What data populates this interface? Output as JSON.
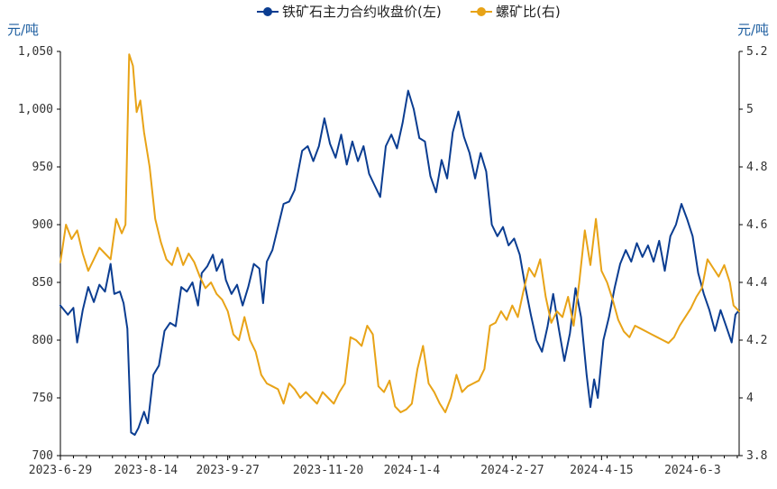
{
  "chart_data": {
    "type": "line",
    "colors": {
      "iron_ore": "#0b3d91",
      "ratio": "#e8a317",
      "axis": "#000000"
    },
    "legend": {
      "placement": "top-center",
      "items": [
        {
          "label": "铁矿石主力合约收盘价(左)",
          "color": "#0b3d91"
        },
        {
          "label": "螺矿比(右)",
          "color": "#e8a317"
        }
      ]
    },
    "y_left": {
      "unit": "元/吨",
      "range": [
        700,
        1050
      ],
      "ticks": [
        "700",
        "750",
        "800",
        "850",
        "900",
        "950",
        "1,000",
        "1,050"
      ],
      "tick_values": [
        700,
        750,
        800,
        850,
        900,
        950,
        1000,
        1050
      ]
    },
    "y_right": {
      "unit": "元/吨",
      "range": [
        3.8,
        5.2
      ],
      "ticks": [
        "3.8",
        "4",
        "4.2",
        "4.4",
        "4.6",
        "4.8",
        "5",
        "5.2"
      ],
      "tick_values": [
        3.8,
        4.0,
        4.2,
        4.4,
        4.6,
        4.8,
        5.0,
        5.2
      ]
    },
    "x_axis": {
      "range": [
        "2023-06-29",
        "2024-06-28"
      ],
      "ticks": [
        "2023-6-29",
        "2023-8-14",
        "2023-9-27",
        "2023-11-20",
        "2024-1-4",
        "2024-2-27",
        "2024-4-15",
        "2024-6-3"
      ],
      "tick_dates": [
        "2023-06-29",
        "2023-08-14",
        "2023-09-27",
        "2023-11-20",
        "2024-01-04",
        "2024-02-27",
        "2024-04-15",
        "2024-06-03"
      ]
    },
    "grid": false,
    "series": [
      {
        "name": "铁矿石主力合约收盘价(左)",
        "axis": "left",
        "color": "#0b3d91",
        "points": [
          [
            "2023-06-29",
            830
          ],
          [
            "2023-07-03",
            822
          ],
          [
            "2023-07-06",
            828
          ],
          [
            "2023-07-08",
            798
          ],
          [
            "2023-07-11",
            826
          ],
          [
            "2023-07-14",
            846
          ],
          [
            "2023-07-17",
            833
          ],
          [
            "2023-07-20",
            848
          ],
          [
            "2023-07-23",
            842
          ],
          [
            "2023-07-26",
            866
          ],
          [
            "2023-07-28",
            840
          ],
          [
            "2023-07-31",
            842
          ],
          [
            "2023-08-02",
            832
          ],
          [
            "2023-08-04",
            810
          ],
          [
            "2023-08-06",
            720
          ],
          [
            "2023-08-08",
            718
          ],
          [
            "2023-08-10",
            724
          ],
          [
            "2023-08-13",
            738
          ],
          [
            "2023-08-15",
            728
          ],
          [
            "2023-08-18",
            770
          ],
          [
            "2023-08-21",
            778
          ],
          [
            "2023-08-24",
            808
          ],
          [
            "2023-08-27",
            815
          ],
          [
            "2023-08-30",
            812
          ],
          [
            "2023-09-02",
            846
          ],
          [
            "2023-09-05",
            842
          ],
          [
            "2023-09-08",
            850
          ],
          [
            "2023-09-11",
            830
          ],
          [
            "2023-09-13",
            858
          ],
          [
            "2023-09-16",
            864
          ],
          [
            "2023-09-19",
            874
          ],
          [
            "2023-09-21",
            860
          ],
          [
            "2023-09-24",
            870
          ],
          [
            "2023-09-26",
            852
          ],
          [
            "2023-09-29",
            840
          ],
          [
            "2023-10-02",
            848
          ],
          [
            "2023-10-05",
            830
          ],
          [
            "2023-10-08",
            846
          ],
          [
            "2023-10-11",
            866
          ],
          [
            "2023-10-14",
            862
          ],
          [
            "2023-10-16",
            832
          ],
          [
            "2023-10-18",
            868
          ],
          [
            "2023-10-21",
            878
          ],
          [
            "2023-10-24",
            898
          ],
          [
            "2023-10-27",
            918
          ],
          [
            "2023-10-30",
            920
          ],
          [
            "2023-11-02",
            930
          ],
          [
            "2023-11-06",
            964
          ],
          [
            "2023-11-09",
            968
          ],
          [
            "2023-11-12",
            955
          ],
          [
            "2023-11-15",
            968
          ],
          [
            "2023-11-18",
            992
          ],
          [
            "2023-11-21",
            970
          ],
          [
            "2023-11-24",
            958
          ],
          [
            "2023-11-27",
            978
          ],
          [
            "2023-11-30",
            952
          ],
          [
            "2023-12-03",
            972
          ],
          [
            "2023-12-06",
            955
          ],
          [
            "2023-12-09",
            968
          ],
          [
            "2023-12-12",
            944
          ],
          [
            "2023-12-15",
            934
          ],
          [
            "2023-12-18",
            924
          ],
          [
            "2023-12-21",
            968
          ],
          [
            "2023-12-24",
            978
          ],
          [
            "2023-12-27",
            966
          ],
          [
            "2023-12-30",
            988
          ],
          [
            "2024-01-02",
            1016
          ],
          [
            "2024-01-05",
            1000
          ],
          [
            "2024-01-08",
            975
          ],
          [
            "2024-01-11",
            972
          ],
          [
            "2024-01-14",
            942
          ],
          [
            "2024-01-17",
            928
          ],
          [
            "2024-01-20",
            956
          ],
          [
            "2024-01-23",
            940
          ],
          [
            "2024-01-26",
            980
          ],
          [
            "2024-01-29",
            998
          ],
          [
            "2024-02-01",
            976
          ],
          [
            "2024-02-04",
            962
          ],
          [
            "2024-02-07",
            940
          ],
          [
            "2024-02-10",
            962
          ],
          [
            "2024-02-13",
            946
          ],
          [
            "2024-02-16",
            900
          ],
          [
            "2024-02-19",
            890
          ],
          [
            "2024-02-22",
            898
          ],
          [
            "2024-02-25",
            882
          ],
          [
            "2024-02-28",
            888
          ],
          [
            "2024-03-02",
            874
          ],
          [
            "2024-03-05",
            846
          ],
          [
            "2024-03-08",
            822
          ],
          [
            "2024-03-11",
            800
          ],
          [
            "2024-03-14",
            790
          ],
          [
            "2024-03-17",
            812
          ],
          [
            "2024-03-20",
            840
          ],
          [
            "2024-03-23",
            810
          ],
          [
            "2024-03-26",
            782
          ],
          [
            "2024-03-29",
            806
          ],
          [
            "2024-04-01",
            845
          ],
          [
            "2024-04-04",
            820
          ],
          [
            "2024-04-07",
            770
          ],
          [
            "2024-04-09",
            742
          ],
          [
            "2024-04-11",
            766
          ],
          [
            "2024-04-13",
            750
          ],
          [
            "2024-04-16",
            800
          ],
          [
            "2024-04-19",
            820
          ],
          [
            "2024-04-22",
            845
          ],
          [
            "2024-04-25",
            866
          ],
          [
            "2024-04-28",
            878
          ],
          [
            "2024-05-01",
            868
          ],
          [
            "2024-05-04",
            884
          ],
          [
            "2024-05-07",
            872
          ],
          [
            "2024-05-10",
            882
          ],
          [
            "2024-05-13",
            868
          ],
          [
            "2024-05-16",
            886
          ],
          [
            "2024-05-19",
            860
          ],
          [
            "2024-05-22",
            890
          ],
          [
            "2024-05-25",
            900
          ],
          [
            "2024-05-28",
            918
          ],
          [
            "2024-05-31",
            905
          ],
          [
            "2024-06-03",
            890
          ],
          [
            "2024-06-06",
            858
          ],
          [
            "2024-06-09",
            840
          ],
          [
            "2024-06-12",
            826
          ],
          [
            "2024-06-15",
            808
          ],
          [
            "2024-06-18",
            826
          ],
          [
            "2024-06-21",
            812
          ],
          [
            "2024-06-24",
            798
          ],
          [
            "2024-06-26",
            822
          ],
          [
            "2024-06-28",
            826
          ]
        ]
      },
      {
        "name": "螺矿比(右)",
        "axis": "right",
        "color": "#e8a317",
        "points": [
          [
            "2023-06-29",
            4.47
          ],
          [
            "2023-07-02",
            4.6
          ],
          [
            "2023-07-05",
            4.55
          ],
          [
            "2023-07-08",
            4.58
          ],
          [
            "2023-07-11",
            4.5
          ],
          [
            "2023-07-14",
            4.44
          ],
          [
            "2023-07-17",
            4.48
          ],
          [
            "2023-07-20",
            4.52
          ],
          [
            "2023-07-23",
            4.5
          ],
          [
            "2023-07-26",
            4.48
          ],
          [
            "2023-07-29",
            4.62
          ],
          [
            "2023-08-01",
            4.57
          ],
          [
            "2023-08-03",
            4.6
          ],
          [
            "2023-08-05",
            5.19
          ],
          [
            "2023-08-07",
            5.15
          ],
          [
            "2023-08-09",
            4.99
          ],
          [
            "2023-08-11",
            5.03
          ],
          [
            "2023-08-13",
            4.92
          ],
          [
            "2023-08-16",
            4.8
          ],
          [
            "2023-08-19",
            4.62
          ],
          [
            "2023-08-22",
            4.54
          ],
          [
            "2023-08-25",
            4.48
          ],
          [
            "2023-08-28",
            4.46
          ],
          [
            "2023-08-31",
            4.52
          ],
          [
            "2023-09-03",
            4.46
          ],
          [
            "2023-09-06",
            4.5
          ],
          [
            "2023-09-09",
            4.47
          ],
          [
            "2023-09-12",
            4.42
          ],
          [
            "2023-09-15",
            4.38
          ],
          [
            "2023-09-18",
            4.4
          ],
          [
            "2023-09-21",
            4.36
          ],
          [
            "2023-09-24",
            4.34
          ],
          [
            "2023-09-27",
            4.3
          ],
          [
            "2023-09-30",
            4.22
          ],
          [
            "2023-10-03",
            4.2
          ],
          [
            "2023-10-06",
            4.28
          ],
          [
            "2023-10-09",
            4.2
          ],
          [
            "2023-10-12",
            4.16
          ],
          [
            "2023-10-15",
            4.08
          ],
          [
            "2023-10-18",
            4.05
          ],
          [
            "2023-10-21",
            4.04
          ],
          [
            "2023-10-24",
            4.03
          ],
          [
            "2023-10-27",
            3.98
          ],
          [
            "2023-10-30",
            4.05
          ],
          [
            "2023-11-02",
            4.03
          ],
          [
            "2023-11-05",
            4.0
          ],
          [
            "2023-11-08",
            4.02
          ],
          [
            "2023-11-11",
            4.0
          ],
          [
            "2023-11-14",
            3.98
          ],
          [
            "2023-11-17",
            4.02
          ],
          [
            "2023-11-20",
            4.0
          ],
          [
            "2023-11-23",
            3.98
          ],
          [
            "2023-11-26",
            4.02
          ],
          [
            "2023-11-29",
            4.05
          ],
          [
            "2023-12-02",
            4.21
          ],
          [
            "2023-12-05",
            4.2
          ],
          [
            "2023-12-08",
            4.18
          ],
          [
            "2023-12-11",
            4.25
          ],
          [
            "2023-12-14",
            4.22
          ],
          [
            "2023-12-17",
            4.04
          ],
          [
            "2023-12-20",
            4.02
          ],
          [
            "2023-12-23",
            4.06
          ],
          [
            "2023-12-26",
            3.97
          ],
          [
            "2023-12-29",
            3.95
          ],
          [
            "2024-01-01",
            3.96
          ],
          [
            "2024-01-04",
            3.98
          ],
          [
            "2024-01-07",
            4.1
          ],
          [
            "2024-01-10",
            4.18
          ],
          [
            "2024-01-13",
            4.05
          ],
          [
            "2024-01-16",
            4.02
          ],
          [
            "2024-01-19",
            3.98
          ],
          [
            "2024-01-22",
            3.95
          ],
          [
            "2024-01-25",
            4.0
          ],
          [
            "2024-01-28",
            4.08
          ],
          [
            "2024-01-31",
            4.02
          ],
          [
            "2024-02-03",
            4.04
          ],
          [
            "2024-02-06",
            4.05
          ],
          [
            "2024-02-09",
            4.06
          ],
          [
            "2024-02-12",
            4.1
          ],
          [
            "2024-02-15",
            4.25
          ],
          [
            "2024-02-18",
            4.26
          ],
          [
            "2024-02-21",
            4.3
          ],
          [
            "2024-02-24",
            4.27
          ],
          [
            "2024-02-27",
            4.32
          ],
          [
            "2024-03-01",
            4.28
          ],
          [
            "2024-03-04",
            4.37
          ],
          [
            "2024-03-07",
            4.45
          ],
          [
            "2024-03-10",
            4.42
          ],
          [
            "2024-03-13",
            4.48
          ],
          [
            "2024-03-16",
            4.35
          ],
          [
            "2024-03-19",
            4.26
          ],
          [
            "2024-03-22",
            4.3
          ],
          [
            "2024-03-25",
            4.28
          ],
          [
            "2024-03-28",
            4.35
          ],
          [
            "2024-03-31",
            4.25
          ],
          [
            "2024-04-03",
            4.4
          ],
          [
            "2024-04-06",
            4.58
          ],
          [
            "2024-04-09",
            4.46
          ],
          [
            "2024-04-12",
            4.62
          ],
          [
            "2024-04-15",
            4.44
          ],
          [
            "2024-04-18",
            4.4
          ],
          [
            "2024-04-21",
            4.34
          ],
          [
            "2024-04-24",
            4.27
          ],
          [
            "2024-04-27",
            4.23
          ],
          [
            "2024-04-30",
            4.21
          ],
          [
            "2024-05-03",
            4.25
          ],
          [
            "2024-05-06",
            4.24
          ],
          [
            "2024-05-09",
            4.23
          ],
          [
            "2024-05-12",
            4.22
          ],
          [
            "2024-05-15",
            4.21
          ],
          [
            "2024-05-18",
            4.2
          ],
          [
            "2024-05-21",
            4.19
          ],
          [
            "2024-05-24",
            4.21
          ],
          [
            "2024-05-27",
            4.25
          ],
          [
            "2024-05-30",
            4.28
          ],
          [
            "2024-06-02",
            4.31
          ],
          [
            "2024-06-05",
            4.35
          ],
          [
            "2024-06-08",
            4.38
          ],
          [
            "2024-06-11",
            4.48
          ],
          [
            "2024-06-14",
            4.45
          ],
          [
            "2024-06-17",
            4.42
          ],
          [
            "2024-06-20",
            4.46
          ],
          [
            "2024-06-23",
            4.4
          ],
          [
            "2024-06-25",
            4.32
          ],
          [
            "2024-06-28",
            4.3
          ]
        ]
      }
    ]
  }
}
